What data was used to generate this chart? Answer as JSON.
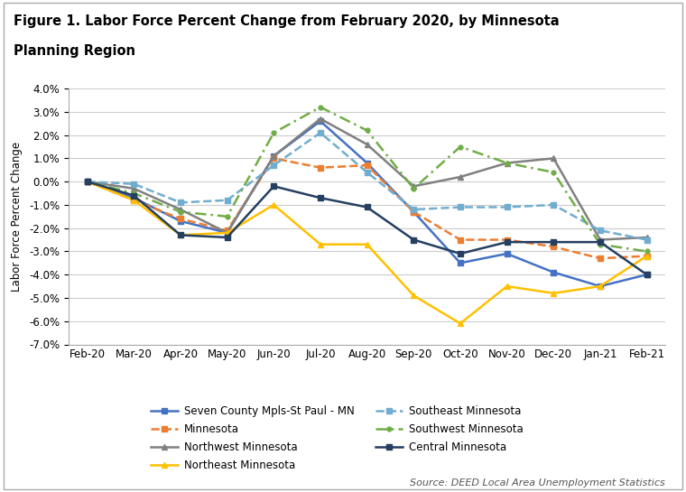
{
  "title_line1": "Figure 1. Labor Force Percent Change from February 2020, by Minnesota",
  "title_line2": "Planning Region",
  "ylabel": "Labor Force Percent Change",
  "source": "Source: DEED Local Area Unemployment Statistics",
  "months": [
    "Feb-20",
    "Mar-20",
    "Apr-20",
    "May-20",
    "Jun-20",
    "Jul-20",
    "Aug-20",
    "Sep-20",
    "Oct-20",
    "Nov-20",
    "Dec-20",
    "Jan-21",
    "Feb-21"
  ],
  "series": [
    {
      "label": "Seven County Mpls-St Paul - MN",
      "color": "#4472C4",
      "linestyle": "solid",
      "marker": "s",
      "linewidth": 1.8,
      "markersize": 5,
      "data": [
        0.0,
        -0.7,
        -1.7,
        -2.2,
        1.1,
        2.6,
        0.8,
        -1.3,
        -3.5,
        -3.1,
        -3.9,
        -4.5,
        -4.0
      ]
    },
    {
      "label": "Minnesota",
      "color": "#ED7D31",
      "linestyle": "dashed",
      "marker": "s",
      "linewidth": 1.8,
      "markersize": 5,
      "data": [
        0.0,
        -0.8,
        -1.6,
        -2.1,
        1.0,
        0.6,
        0.7,
        -1.3,
        -2.5,
        -2.5,
        -2.8,
        -3.3,
        -3.2
      ]
    },
    {
      "label": "Northwest Minnesota",
      "color": "#808080",
      "linestyle": "solid",
      "marker": "^",
      "linewidth": 1.8,
      "markersize": 5,
      "data": [
        0.0,
        -0.3,
        -1.2,
        -2.2,
        1.1,
        2.7,
        1.6,
        -0.2,
        0.2,
        0.8,
        1.0,
        -2.5,
        -2.4
      ]
    },
    {
      "label": "Northeast Minnesota",
      "color": "#FFC000",
      "linestyle": "solid",
      "marker": "^",
      "linewidth": 1.8,
      "markersize": 5,
      "data": [
        0.0,
        -0.8,
        -2.3,
        -2.2,
        -1.0,
        -2.7,
        -2.7,
        -4.9,
        -6.1,
        -4.5,
        -4.8,
        -4.5,
        -3.2
      ]
    },
    {
      "label": "Southeast Minnesota",
      "color": "#70ADCF",
      "linestyle": "dashed",
      "marker": "s",
      "linewidth": 1.8,
      "markersize": 5,
      "data": [
        0.0,
        -0.1,
        -0.9,
        -0.8,
        0.7,
        2.1,
        0.4,
        -1.2,
        -1.1,
        -1.1,
        -1.0,
        -2.1,
        -2.5
      ]
    },
    {
      "label": "Southwest Minnesota",
      "color": "#70AD47",
      "linestyle": "dashdot",
      "marker": ".",
      "linewidth": 1.8,
      "markersize": 7,
      "data": [
        0.0,
        -0.5,
        -1.3,
        -1.5,
        2.1,
        3.2,
        2.2,
        -0.3,
        1.5,
        0.8,
        0.4,
        -2.7,
        -3.0
      ]
    },
    {
      "label": "Central Minnesota",
      "color": "#243F60",
      "linestyle": "solid",
      "marker": "s",
      "linewidth": 1.8,
      "markersize": 5,
      "data": [
        0.0,
        -0.6,
        -2.3,
        -2.4,
        -0.2,
        -0.7,
        -1.1,
        -2.5,
        -3.1,
        -2.6,
        -2.6,
        -2.6,
        -4.0
      ]
    }
  ],
  "legend_order": [
    0,
    1,
    2,
    3,
    4,
    5,
    6
  ],
  "legend_ncol": 2,
  "ylim": [
    -7.0,
    4.0
  ],
  "yticks": [
    -7.0,
    -6.0,
    -5.0,
    -4.0,
    -3.0,
    -2.0,
    -1.0,
    0.0,
    1.0,
    2.0,
    3.0,
    4.0
  ],
  "background_color": "#FFFFFF",
  "grid_color": "#CCCCCC",
  "border_color": "#AAAAAA"
}
